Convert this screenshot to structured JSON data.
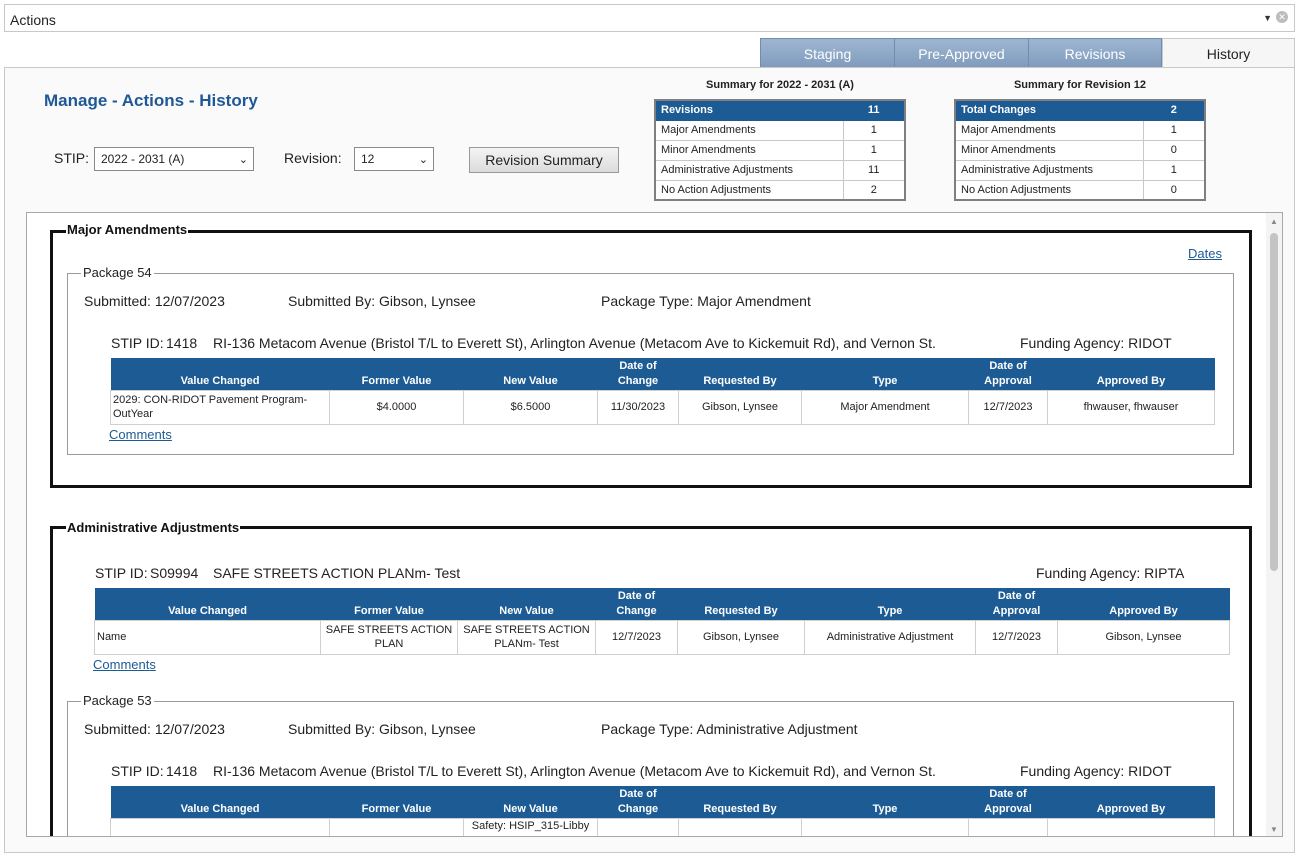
{
  "actions_bar": {
    "title": "Actions",
    "caret": "▼",
    "close": "✕"
  },
  "tabs": [
    {
      "label": "Staging"
    },
    {
      "label": "Pre-Approved"
    },
    {
      "label": "Revisions"
    },
    {
      "label": "History"
    }
  ],
  "active_tab": "History",
  "header": {
    "title": "Manage - Actions - History",
    "stip_label": "STIP:",
    "stip_value": "2022 - 2031 (A)",
    "revision_label": "Revision:",
    "revision_value": "12",
    "revision_summary_button": "Revision Summary"
  },
  "summary_stip": {
    "title": "Summary for 2022 - 2031 (A)",
    "head": {
      "label": "Revisions",
      "value": "11"
    },
    "rows": [
      {
        "label": "Major Amendments",
        "value": "1"
      },
      {
        "label": "Minor Amendments",
        "value": "1"
      },
      {
        "label": "Administrative Adjustments",
        "value": "11"
      },
      {
        "label": "No Action Adjustments",
        "value": "2"
      }
    ]
  },
  "summary_revision": {
    "title": "Summary for Revision 12",
    "head": {
      "label": "Total Changes",
      "value": "2"
    },
    "rows": [
      {
        "label": "Major Amendments",
        "value": "1"
      },
      {
        "label": "Minor Amendments",
        "value": "0"
      },
      {
        "label": "Administrative Adjustments",
        "value": "1"
      },
      {
        "label": "No Action Adjustments",
        "value": "0"
      }
    ]
  },
  "columns": {
    "value_changed": "Value Changed",
    "former_value": "Former Value",
    "new_value": "New Value",
    "date_of_change_1": "Date of",
    "date_of_change_2": "Change",
    "requested_by": "Requested By",
    "type": "Type",
    "date_of_approval_1": "Date of",
    "date_of_approval_2": "Approval",
    "approved_by": "Approved By"
  },
  "major_section": {
    "legend": "Major Amendments",
    "dates_link": "Dates",
    "package": {
      "legend": "Package 54",
      "submitted": "Submitted: 12/07/2023",
      "submitted_by": "Submitted By: Gibson, Lynsee",
      "package_type": "Package Type: Major Amendment",
      "stip_id_label": "STIP ID:",
      "stip_id": "1418",
      "project": "RI-136 Metacom Avenue (Bristol T/L to Everett St), Arlington Avenue (Metacom Ave to Kickemuit Rd), and Vernon St.",
      "funding_agency": "Funding Agency: RIDOT",
      "row": {
        "value_changed": "2029: CON-RIDOT Pavement Program-OutYear",
        "former_value": "$4.0000",
        "new_value": "$6.5000",
        "date_of_change": "11/30/2023",
        "requested_by": "Gibson, Lynsee",
        "type": "Major Amendment",
        "date_of_approval": "12/7/2023",
        "approved_by": "fhwauser, fhwauser"
      },
      "comments_link": "Comments"
    }
  },
  "admin_section": {
    "legend": "Administrative Adjustments",
    "standalone": {
      "stip_id_label": "STIP ID:",
      "stip_id": "S09994",
      "project": "SAFE STREETS ACTION PLANm- Test",
      "funding_agency": "Funding Agency: RIPTA",
      "row": {
        "value_changed": "Name",
        "former_value": "SAFE STREETS ACTION PLAN",
        "new_value": "SAFE STREETS ACTION PLANm- Test",
        "date_of_change": "12/7/2023",
        "requested_by": "Gibson, Lynsee",
        "type": "Administrative Adjustment",
        "date_of_approval": "12/7/2023",
        "approved_by": "Gibson, Lynsee"
      },
      "comments_link": "Comments"
    },
    "package": {
      "legend": "Package 53",
      "submitted": "Submitted: 12/07/2023",
      "submitted_by": "Submitted By: Gibson, Lynsee",
      "package_type": "Package Type: Administrative Adjustment",
      "stip_id_label": "STIP ID:",
      "stip_id": "1418",
      "project": "RI-136 Metacom Avenue (Bristol T/L to Everett St), Arlington Avenue (Metacom Ave to Kickemuit Rd), and Vernon St.",
      "funding_agency": "Funding Agency: RIDOT",
      "row": {
        "new_value": "Safety: HSIP_315-Libby"
      }
    }
  },
  "colors": {
    "accent": "#1d5b94",
    "tab": "#8aa5c6"
  }
}
